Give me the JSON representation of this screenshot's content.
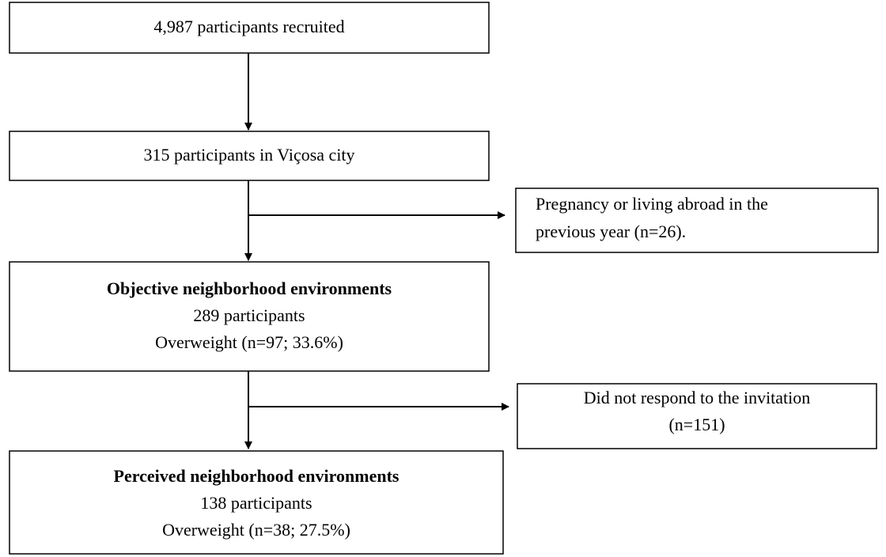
{
  "nodes": [
    {
      "lines": [
        "4,987 participants recruited"
      ]
    },
    {
      "lines": [
        "315 participants in Viçosa city"
      ]
    },
    {
      "lines": [
        "Pregnancy or living abroad in the",
        "previous year (n=26)."
      ]
    },
    {
      "lines": [
        "Objective neighborhood environments",
        "289 participants",
        "Overweight (n=97; 33.6%)"
      ]
    },
    {
      "lines": [
        "Did not respond to the invitation",
        "(n=151)"
      ]
    },
    {
      "lines": [
        "Perceived neighborhood environments",
        "138 participants",
        "Overweight (n=38; 27.5%)"
      ]
    }
  ]
}
